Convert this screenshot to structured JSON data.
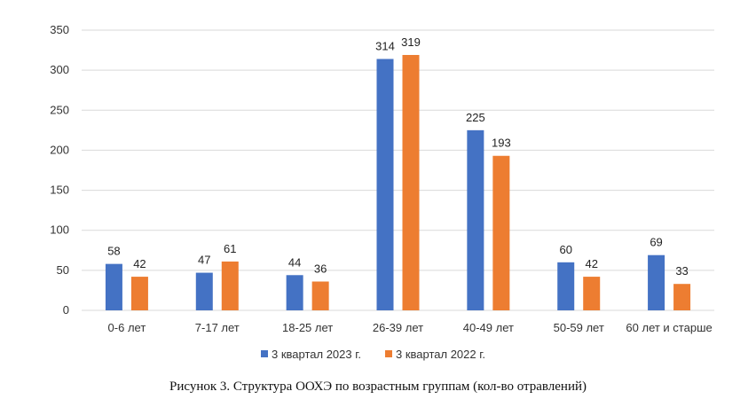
{
  "caption": "Рисунок 3. Структура ООХЭ по возрастным группам (кол-во отравлений)",
  "chart_data": {
    "type": "bar",
    "categories": [
      "0-6 лет",
      "7-17 лет",
      "18-25 лет",
      "26-39 лет",
      "40-49 лет",
      "50-59 лет",
      "60 лет и старше"
    ],
    "series": [
      {
        "name": "3 квартал 2023 г.",
        "color": "#4472C4",
        "values": [
          58,
          47,
          44,
          314,
          225,
          60,
          69
        ]
      },
      {
        "name": "3 квартал 2022 г.",
        "color": "#ED7D31",
        "values": [
          42,
          61,
          36,
          319,
          193,
          42,
          33
        ]
      }
    ],
    "yticks": [
      0,
      50,
      100,
      150,
      200,
      250,
      300,
      350
    ],
    "ylim": [
      0,
      350
    ],
    "grid": true,
    "legend": "bottom",
    "title": "",
    "xlabel": "",
    "ylabel": ""
  }
}
